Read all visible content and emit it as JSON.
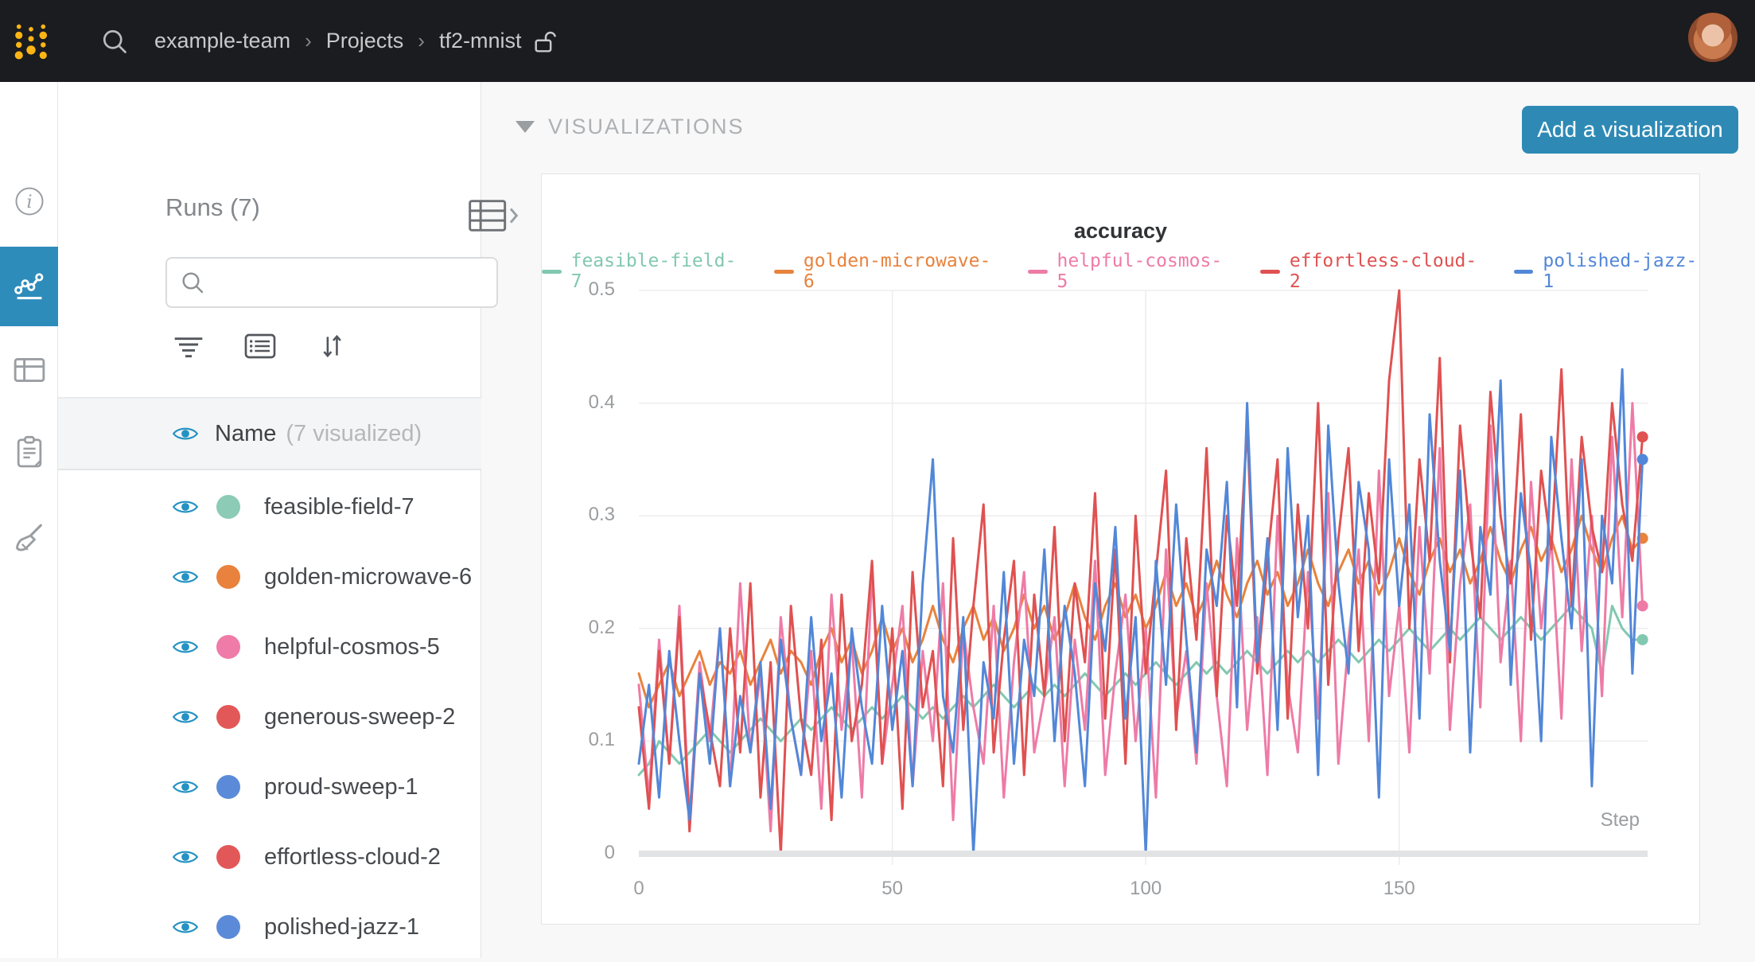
{
  "navbar": {
    "breadcrumb": {
      "team": "example-team",
      "section": "Projects",
      "project": "tf2-mnist",
      "separator": "›"
    }
  },
  "rail": {
    "items": [
      "info-icon",
      "line-chart-icon",
      "table-icon",
      "notes-icon",
      "sweep-icon"
    ],
    "active": "line-chart-icon",
    "active_color": "#2e8cba"
  },
  "runs_panel": {
    "title": "Runs (7)",
    "search_placeholder": "",
    "search_value": "",
    "header": {
      "name": "Name",
      "visualized": "(7 visualized)"
    },
    "eye_color": "#2492c2",
    "runs": [
      {
        "name": "feasible-field-7",
        "color": "#8ccbb6"
      },
      {
        "name": "golden-microwave-6",
        "color": "#e8823c"
      },
      {
        "name": "helpful-cosmos-5",
        "color": "#ef7ba8"
      },
      {
        "name": "generous-sweep-2",
        "color": "#e25858"
      },
      {
        "name": "proud-sweep-1",
        "color": "#5b8bd8"
      },
      {
        "name": "effortless-cloud-2",
        "color": "#e25858"
      },
      {
        "name": "polished-jazz-1",
        "color": "#5b8bd8"
      }
    ]
  },
  "main": {
    "section_title": "VISUALIZATIONS",
    "add_button": "Add a visualization"
  },
  "chart_data": {
    "type": "line",
    "title": "accuracy",
    "xlabel": "Step",
    "ylabel": "",
    "xlim": [
      0,
      199
    ],
    "ylim": [
      0,
      0.5
    ],
    "x_start": 0,
    "x_step": 2,
    "x_ticks": [
      0,
      50,
      100,
      150
    ],
    "y_ticks": [
      "0.5",
      "0.4",
      "0.3",
      "0.2",
      "0.1",
      "0"
    ],
    "grid": true,
    "legend_position": "top",
    "series": [
      {
        "name": "feasible-field-7",
        "color": "#82c8b0",
        "values": [
          0.07,
          0.08,
          0.1,
          0.09,
          0.08,
          0.09,
          0.1,
          0.11,
          0.1,
          0.09,
          0.1,
          0.11,
          0.12,
          0.11,
          0.1,
          0.11,
          0.12,
          0.11,
          0.12,
          0.13,
          0.12,
          0.11,
          0.12,
          0.13,
          0.12,
          0.13,
          0.14,
          0.13,
          0.12,
          0.13,
          0.12,
          0.13,
          0.14,
          0.13,
          0.14,
          0.15,
          0.14,
          0.13,
          0.14,
          0.15,
          0.14,
          0.15,
          0.14,
          0.15,
          0.16,
          0.15,
          0.14,
          0.15,
          0.16,
          0.15,
          0.16,
          0.17,
          0.16,
          0.15,
          0.16,
          0.17,
          0.16,
          0.17,
          0.16,
          0.17,
          0.18,
          0.17,
          0.16,
          0.17,
          0.18,
          0.17,
          0.18,
          0.17,
          0.18,
          0.19,
          0.18,
          0.17,
          0.18,
          0.19,
          0.18,
          0.19,
          0.2,
          0.19,
          0.18,
          0.19,
          0.2,
          0.19,
          0.2,
          0.21,
          0.2,
          0.19,
          0.2,
          0.21,
          0.2,
          0.19,
          0.2,
          0.21,
          0.22,
          0.21,
          0.2,
          0.16,
          0.22,
          0.2,
          0.19,
          0.19
        ]
      },
      {
        "name": "golden-microwave-6",
        "color": "#e8823c",
        "values": [
          0.16,
          0.13,
          0.15,
          0.17,
          0.14,
          0.16,
          0.18,
          0.15,
          0.17,
          0.16,
          0.18,
          0.15,
          0.17,
          0.19,
          0.16,
          0.18,
          0.17,
          0.15,
          0.18,
          0.2,
          0.17,
          0.19,
          0.16,
          0.18,
          0.21,
          0.18,
          0.2,
          0.17,
          0.19,
          0.22,
          0.19,
          0.17,
          0.2,
          0.22,
          0.19,
          0.21,
          0.18,
          0.2,
          0.23,
          0.2,
          0.22,
          0.19,
          0.21,
          0.24,
          0.21,
          0.19,
          0.22,
          0.24,
          0.21,
          0.23,
          0.2,
          0.22,
          0.25,
          0.22,
          0.24,
          0.21,
          0.23,
          0.26,
          0.23,
          0.21,
          0.24,
          0.26,
          0.23,
          0.25,
          0.22,
          0.24,
          0.27,
          0.24,
          0.22,
          0.25,
          0.27,
          0.24,
          0.26,
          0.23,
          0.25,
          0.28,
          0.25,
          0.23,
          0.26,
          0.28,
          0.25,
          0.27,
          0.24,
          0.26,
          0.29,
          0.26,
          0.24,
          0.27,
          0.29,
          0.26,
          0.28,
          0.25,
          0.27,
          0.3,
          0.27,
          0.25,
          0.28,
          0.3,
          0.27,
          0.28
        ]
      },
      {
        "name": "helpful-cosmos-5",
        "color": "#ee7ba6",
        "values": [
          0.15,
          0.05,
          0.19,
          0.08,
          0.22,
          0.03,
          0.17,
          0.1,
          0.2,
          0.06,
          0.24,
          0.09,
          0.16,
          0.02,
          0.21,
          0.12,
          0.07,
          0.18,
          0.04,
          0.23,
          0.11,
          0.19,
          0.05,
          0.25,
          0.08,
          0.15,
          0.22,
          0.06,
          0.18,
          0.1,
          0.24,
          0.03,
          0.2,
          0.13,
          0.08,
          0.22,
          0.05,
          0.17,
          0.25,
          0.09,
          0.14,
          0.21,
          0.06,
          0.19,
          0.11,
          0.26,
          0.07,
          0.16,
          0.23,
          0.1,
          0.2,
          0.05,
          0.27,
          0.12,
          0.18,
          0.08,
          0.24,
          0.14,
          0.06,
          0.28,
          0.11,
          0.21,
          0.07,
          0.3,
          0.15,
          0.09,
          0.25,
          0.12,
          0.32,
          0.08,
          0.19,
          0.27,
          0.1,
          0.34,
          0.14,
          0.22,
          0.09,
          0.29,
          0.16,
          0.36,
          0.11,
          0.24,
          0.31,
          0.13,
          0.38,
          0.17,
          0.26,
          0.1,
          0.33,
          0.2,
          0.28,
          0.12,
          0.35,
          0.18,
          0.3,
          0.14,
          0.37,
          0.21,
          0.4,
          0.22
        ]
      },
      {
        "name": "effortless-cloud-2",
        "color": "#e05151",
        "values": [
          0.13,
          0.04,
          0.18,
          0.08,
          0.21,
          0.02,
          0.16,
          0.11,
          0.06,
          0.2,
          0.09,
          0.24,
          0.05,
          0.17,
          0.0,
          0.22,
          0.12,
          0.07,
          0.19,
          0.03,
          0.23,
          0.1,
          0.15,
          0.26,
          0.08,
          0.2,
          0.04,
          0.25,
          0.13,
          0.18,
          0.06,
          0.28,
          0.11,
          0.22,
          0.31,
          0.09,
          0.19,
          0.26,
          0.07,
          0.23,
          0.14,
          0.29,
          0.1,
          0.24,
          0.17,
          0.32,
          0.12,
          0.27,
          0.08,
          0.3,
          0.16,
          0.25,
          0.34,
          0.11,
          0.28,
          0.19,
          0.36,
          0.14,
          0.3,
          0.22,
          0.38,
          0.16,
          0.26,
          0.35,
          0.12,
          0.31,
          0.2,
          0.4,
          0.15,
          0.28,
          0.36,
          0.18,
          0.32,
          0.24,
          0.42,
          0.5,
          0.2,
          0.35,
          0.26,
          0.44,
          0.17,
          0.38,
          0.28,
          0.21,
          0.41,
          0.3,
          0.24,
          0.39,
          0.19,
          0.34,
          0.27,
          0.43,
          0.22,
          0.37,
          0.29,
          0.25,
          0.4,
          0.31,
          0.26,
          0.37
        ]
      },
      {
        "name": "polished-jazz-1",
        "color": "#5287d8",
        "values": [
          0.08,
          0.15,
          0.05,
          0.18,
          0.1,
          0.03,
          0.16,
          0.08,
          0.2,
          0.06,
          0.14,
          0.09,
          0.17,
          0.04,
          0.19,
          0.12,
          0.07,
          0.21,
          0.1,
          0.16,
          0.05,
          0.2,
          0.13,
          0.08,
          0.22,
          0.11,
          0.18,
          0.06,
          0.24,
          0.35,
          0.14,
          0.09,
          0.21,
          0.0,
          0.17,
          0.12,
          0.25,
          0.08,
          0.19,
          0.14,
          0.27,
          0.1,
          0.22,
          0.16,
          0.06,
          0.24,
          0.18,
          0.29,
          0.12,
          0.21,
          0.0,
          0.26,
          0.15,
          0.31,
          0.19,
          0.09,
          0.27,
          0.22,
          0.33,
          0.13,
          0.4,
          0.17,
          0.28,
          0.11,
          0.36,
          0.21,
          0.3,
          0.07,
          0.38,
          0.24,
          0.16,
          0.33,
          0.27,
          0.05,
          0.35,
          0.22,
          0.31,
          0.12,
          0.39,
          0.26,
          0.18,
          0.34,
          0.09,
          0.29,
          0.23,
          0.42,
          0.15,
          0.32,
          0.25,
          0.1,
          0.37,
          0.28,
          0.2,
          0.35,
          0.06,
          0.3,
          0.24,
          0.43,
          0.16,
          0.35
        ]
      }
    ]
  }
}
